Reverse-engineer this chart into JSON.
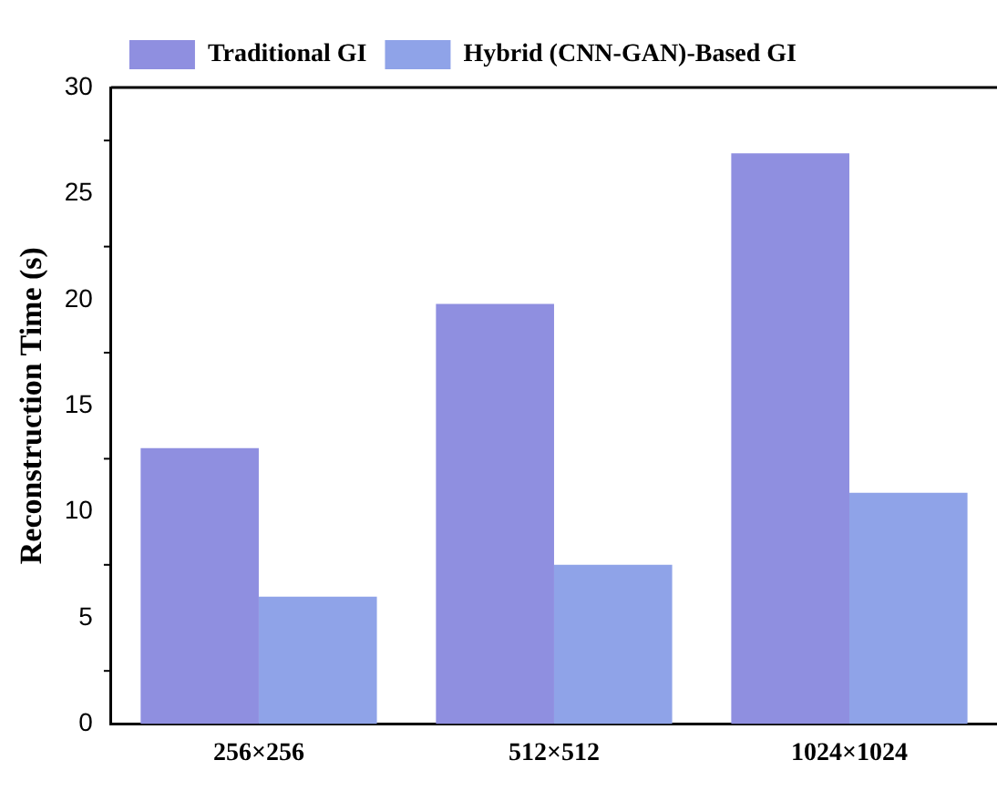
{
  "chart_data": {
    "type": "bar",
    "ylabel": "Reconstruction Time (s)",
    "categories": [
      "256×256",
      "512×512",
      "1024×1024"
    ],
    "series": [
      {
        "name": "Traditional GI",
        "color": "#8f8fe0",
        "values": [
          13.0,
          19.8,
          26.9
        ]
      },
      {
        "name": "Hybrid (CNN-GAN)-Based GI",
        "color": "#8fa3e8",
        "values": [
          6.0,
          7.5,
          10.9
        ]
      }
    ],
    "ylim": [
      0,
      30
    ],
    "yticks": [
      0,
      5,
      10,
      15,
      20,
      25,
      30
    ],
    "grid": false,
    "legend": "top left"
  }
}
